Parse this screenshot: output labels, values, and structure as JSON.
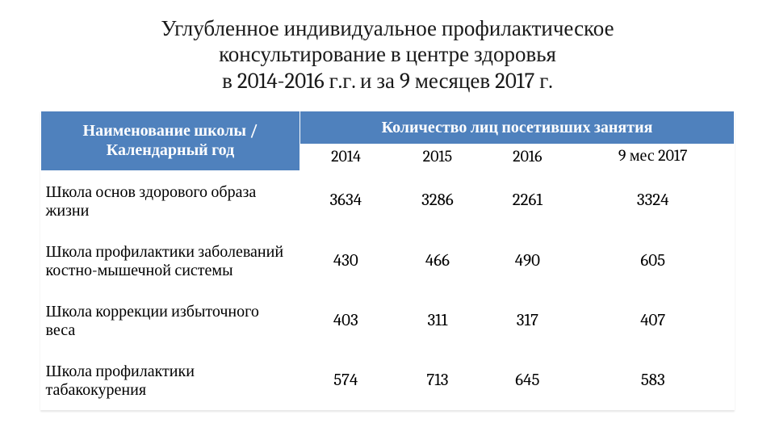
{
  "title_lines": [
    "Углубленное индивидуальное профилактическое",
    "консультирование  в центре здоровья",
    "в 2014-2016 г.г. и за 9 месяцев 2017 г."
  ],
  "table": {
    "header_left": "Наименование школы / Календарный год",
    "header_group": "Количество лиц посетивших занятия",
    "year_cols": [
      "2014",
      "2015",
      "2016",
      "9 мес 2017"
    ],
    "rows": [
      {
        "label": "Школа основ здорового образа жизни",
        "vals": [
          "3634",
          "3286",
          "2261",
          "3324"
        ]
      },
      {
        "label": "Школа профилактики заболеваний костно-мышечной системы",
        "vals": [
          "430",
          "466",
          "490",
          "605"
        ]
      },
      {
        "label": "Школа коррекции избыточного веса",
        "vals": [
          "403",
          "311",
          "317",
          "407"
        ]
      },
      {
        "label": "Школа профилактики табакокурения",
        "vals": [
          "574",
          "713",
          "645",
          "583"
        ]
      }
    ]
  },
  "colors": {
    "header_bg": "#4f81bd",
    "header_fg": "#ffffff",
    "text": "#000000",
    "bg": "#ffffff"
  },
  "fonts": {
    "title_pt": 27,
    "cell_pt": 20
  }
}
